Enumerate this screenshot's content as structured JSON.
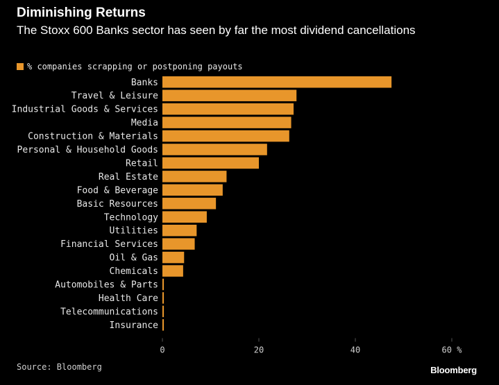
{
  "title": "Diminishing Returns",
  "subtitle": "The Stoxx 600 Banks sector has seen by far the most dividend cancellations",
  "source": "Source: Bloomberg",
  "brand": "Bloomberg",
  "colors": {
    "bar": "#e8962b",
    "background": "#000000",
    "grid": "#555555"
  },
  "chart_data": {
    "type": "bar",
    "orientation": "horizontal",
    "categories": [
      "Banks",
      "Travel & Leisure",
      "Industrial Goods & Services",
      "Media",
      "Construction & Materials",
      "Personal & Household Goods",
      "Retail",
      "Real Estate",
      "Food & Beverage",
      "Basic Resources",
      "Technology",
      "Utilities",
      "Financial Services",
      "Oil & Gas",
      "Chemicals",
      "Automobiles & Parts",
      "Health Care",
      "Telecommunications",
      "Insurance"
    ],
    "series": [
      {
        "name": "% companies scrapping or postponing payouts",
        "values": [
          47.5,
          27.8,
          27.2,
          26.7,
          26.3,
          21.7,
          20.0,
          13.3,
          12.5,
          11.1,
          9.2,
          7.1,
          6.7,
          4.5,
          4.3,
          0.3,
          0.3,
          0.3,
          0.3
        ]
      }
    ],
    "xlim": [
      0,
      60
    ],
    "xticks": [
      "0",
      "20",
      "40",
      "60 %"
    ],
    "xtick_values": [
      0,
      20,
      40,
      60
    ],
    "legend_position": "top-left"
  }
}
